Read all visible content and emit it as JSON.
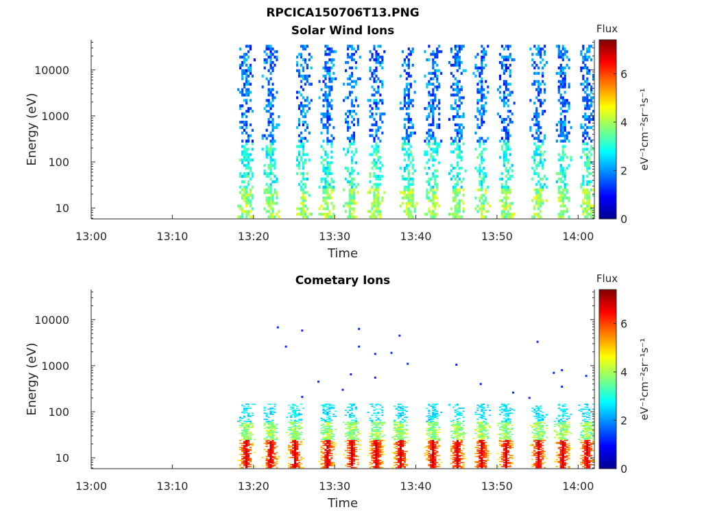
{
  "figure_title": "RPCICA150706T13.PNG",
  "chart_data": [
    {
      "type": "heatmap",
      "title": "Solar Wind Ions",
      "xlabel": "Time",
      "ylabel": "Energy (eV)",
      "y_scale": "log",
      "xlim": [
        "13:00",
        "14:02"
      ],
      "ylim": [
        5.8,
        45000
      ],
      "x_ticks": [
        "13:00",
        "13:10",
        "13:20",
        "13:30",
        "13:40",
        "13:50",
        "14:00"
      ],
      "y_ticks": [
        {
          "value": 10,
          "label": "10"
        },
        {
          "value": 100,
          "label": "100"
        },
        {
          "value": 1000,
          "label": "1000"
        },
        {
          "value": 10000,
          "label": "10000"
        }
      ],
      "colorbar": {
        "title": "Flux",
        "label": "eV⁻¹cm⁻²sr⁻¹s⁻¹",
        "ticks": [
          "0",
          "2",
          "4",
          "6"
        ],
        "range": [
          0,
          7.4
        ],
        "colormap": "jet"
      },
      "data_start": "13:17",
      "data_end": "14:02",
      "sweep_peaks": [
        "13:19",
        "13:22",
        "13:26",
        "13:29",
        "13:32",
        "13:35",
        "13:39",
        "13:42",
        "13:45",
        "13:48",
        "13:51",
        "13:55",
        "13:58",
        "14:01"
      ],
      "energy_max": 35000,
      "intensity": "low flux (1-3.5) across all energies during each sweep, peaking ~4.5 below 20 eV"
    },
    {
      "type": "heatmap",
      "title": "Cometary Ions",
      "xlabel": "Time",
      "ylabel": "Energy (eV)",
      "y_scale": "log",
      "xlim": [
        "13:00",
        "14:02"
      ],
      "ylim": [
        5.8,
        45000
      ],
      "x_ticks": [
        "13:00",
        "13:10",
        "13:20",
        "13:30",
        "13:40",
        "13:50",
        "14:00"
      ],
      "y_ticks": [
        {
          "value": 10,
          "label": "10"
        },
        {
          "value": 100,
          "label": "100"
        },
        {
          "value": 1000,
          "label": "1000"
        },
        {
          "value": 10000,
          "label": "10000"
        }
      ],
      "colorbar": {
        "title": "Flux",
        "label": "eV⁻¹cm⁻²sr⁻¹s⁻¹",
        "ticks": [
          "0",
          "2",
          "4",
          "6"
        ],
        "range": [
          0,
          7.4
        ],
        "colormap": "jet"
      },
      "data_start": "13:18",
      "data_end": "14:02",
      "sweep_peaks": [
        "13:19",
        "13:22",
        "13:25",
        "13:29",
        "13:32",
        "13:35",
        "13:38",
        "13:42",
        "13:45",
        "13:48",
        "13:51",
        "13:55",
        "13:58",
        "14:01"
      ],
      "energy_max": 150,
      "intensity": "flux 5-6.5 below 25 eV, 3.5-4.5 from 25-60 eV, ~2.5 up to 150 eV",
      "sparse_points": [
        {
          "time": "13:23",
          "energy": 6800
        },
        {
          "time": "13:26",
          "energy": 5800
        },
        {
          "time": "13:24",
          "energy": 2600
        },
        {
          "time": "13:33",
          "energy": 6300
        },
        {
          "time": "13:33",
          "energy": 2600
        },
        {
          "time": "13:38",
          "energy": 4500
        },
        {
          "time": "13:35",
          "energy": 1800
        },
        {
          "time": "13:37",
          "energy": 1900
        },
        {
          "time": "13:39",
          "energy": 1100
        },
        {
          "time": "13:45",
          "energy": 1050
        },
        {
          "time": "13:55",
          "energy": 3300
        },
        {
          "time": "13:58",
          "energy": 800
        },
        {
          "time": "13:57",
          "energy": 700
        },
        {
          "time": "14:01",
          "energy": 600
        },
        {
          "time": "13:32",
          "energy": 650
        },
        {
          "time": "13:35",
          "energy": 550
        },
        {
          "time": "13:28",
          "energy": 450
        },
        {
          "time": "13:48",
          "energy": 400
        },
        {
          "time": "13:26",
          "energy": 210
        },
        {
          "time": "13:52",
          "energy": 260
        },
        {
          "time": "13:54",
          "energy": 200
        },
        {
          "time": "13:31",
          "energy": 300
        },
        {
          "time": "13:58",
          "energy": 350
        }
      ]
    }
  ]
}
